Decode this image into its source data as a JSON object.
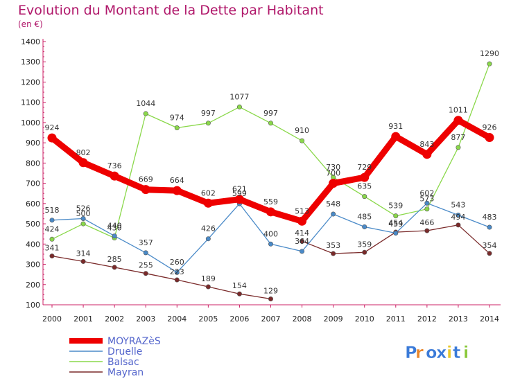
{
  "chart_data": {
    "type": "line",
    "title": "Evolution du Montant de la Dette par Habitant",
    "subtitle": "(en €)",
    "x": [
      "2000",
      "2001",
      "2002",
      "2003",
      "2004",
      "2005",
      "2006",
      "2007",
      "2008",
      "2009",
      "2010",
      "2011",
      "2012",
      "2013",
      "2014"
    ],
    "ylim": [
      100,
      1400
    ],
    "yticks": [
      100,
      200,
      300,
      400,
      500,
      600,
      700,
      800,
      900,
      1000,
      1100,
      1200,
      1300,
      1400
    ],
    "grid": false,
    "legend_position": "bottom-left",
    "series": [
      {
        "name": "MOYRAZèS",
        "color": "#ee0000",
        "values": [
          924,
          802,
          736,
          669,
          664,
          602,
          621,
          559,
          513,
          700,
          729,
          931,
          843,
          1011,
          926
        ]
      },
      {
        "name": "Druelle",
        "color": "#4a8ac8",
        "values": [
          518,
          526,
          440,
          357,
          260,
          426,
          599,
          400,
          364,
          548,
          485,
          454,
          602,
          543,
          483
        ]
      },
      {
        "name": "Balsac",
        "color": "#8ad84a",
        "values": [
          424,
          500,
          430,
          1044,
          974,
          997,
          1077,
          997,
          910,
          730,
          635,
          539,
          573,
          877,
          1290
        ]
      },
      {
        "name": "Mayran",
        "color": "#7a2a2a",
        "values": [
          341,
          314,
          285,
          255,
          223,
          189,
          154,
          129,
          414,
          353,
          359,
          459,
          466,
          494,
          354
        ]
      }
    ]
  },
  "logo": {
    "text": "Proxiti",
    "letters": [
      "P",
      "r",
      "o",
      "x",
      "i",
      "t",
      "i"
    ],
    "colors": [
      "#3a7ad8",
      "#e8862a",
      "#3a7ad8",
      "#3a7ad8",
      "#e8c82a",
      "#3a7ad8",
      "#8ac83a"
    ]
  }
}
